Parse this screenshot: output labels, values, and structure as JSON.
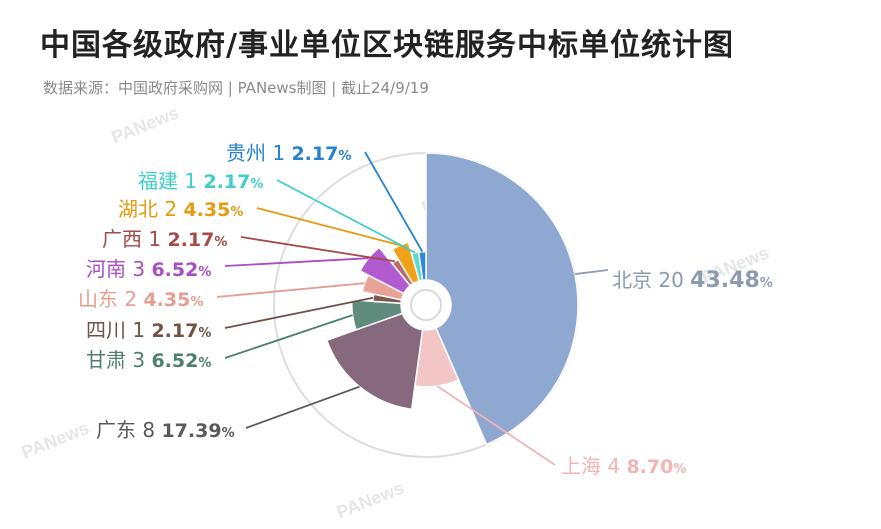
{
  "title": "中国各级政府/事业单位区块链服务中标单位统计图",
  "subtitle": "数据来源：中国政府采购网 | PANews制图 | 截止24/9/19",
  "watermark": "PANews",
  "chart_data": {
    "type": "pie",
    "variant": "rose",
    "categories": [
      "北京",
      "上海",
      "广东",
      "甘肃",
      "四川",
      "山东",
      "河南",
      "广西",
      "湖北",
      "福建",
      "贵州"
    ],
    "counts": [
      20,
      4,
      8,
      3,
      1,
      2,
      3,
      1,
      2,
      1,
      1
    ],
    "percents": [
      "43.48",
      "8.70",
      "17.39",
      "6.52",
      "2.17",
      "4.35",
      "6.52",
      "2.17",
      "4.35",
      "2.17",
      "2.17"
    ],
    "colors": [
      "#8fa8d1",
      "#f2c6c6",
      "#87697e",
      "#5f8c7c",
      "#7a5a4e",
      "#e9a297",
      "#b25ad0",
      "#b86c6c",
      "#f2a219",
      "#56d8d4",
      "#2f8bd8"
    ],
    "label_colors": [
      "#8c9bb0",
      "#f0b4b4",
      "#5a5a5a",
      "#4f7f70",
      "#6f5346",
      "#e69d92",
      "#a74ec5",
      "#a64a4a",
      "#e69a10",
      "#3fcfc8",
      "#2582cf"
    ],
    "percent_suffix": "%"
  }
}
